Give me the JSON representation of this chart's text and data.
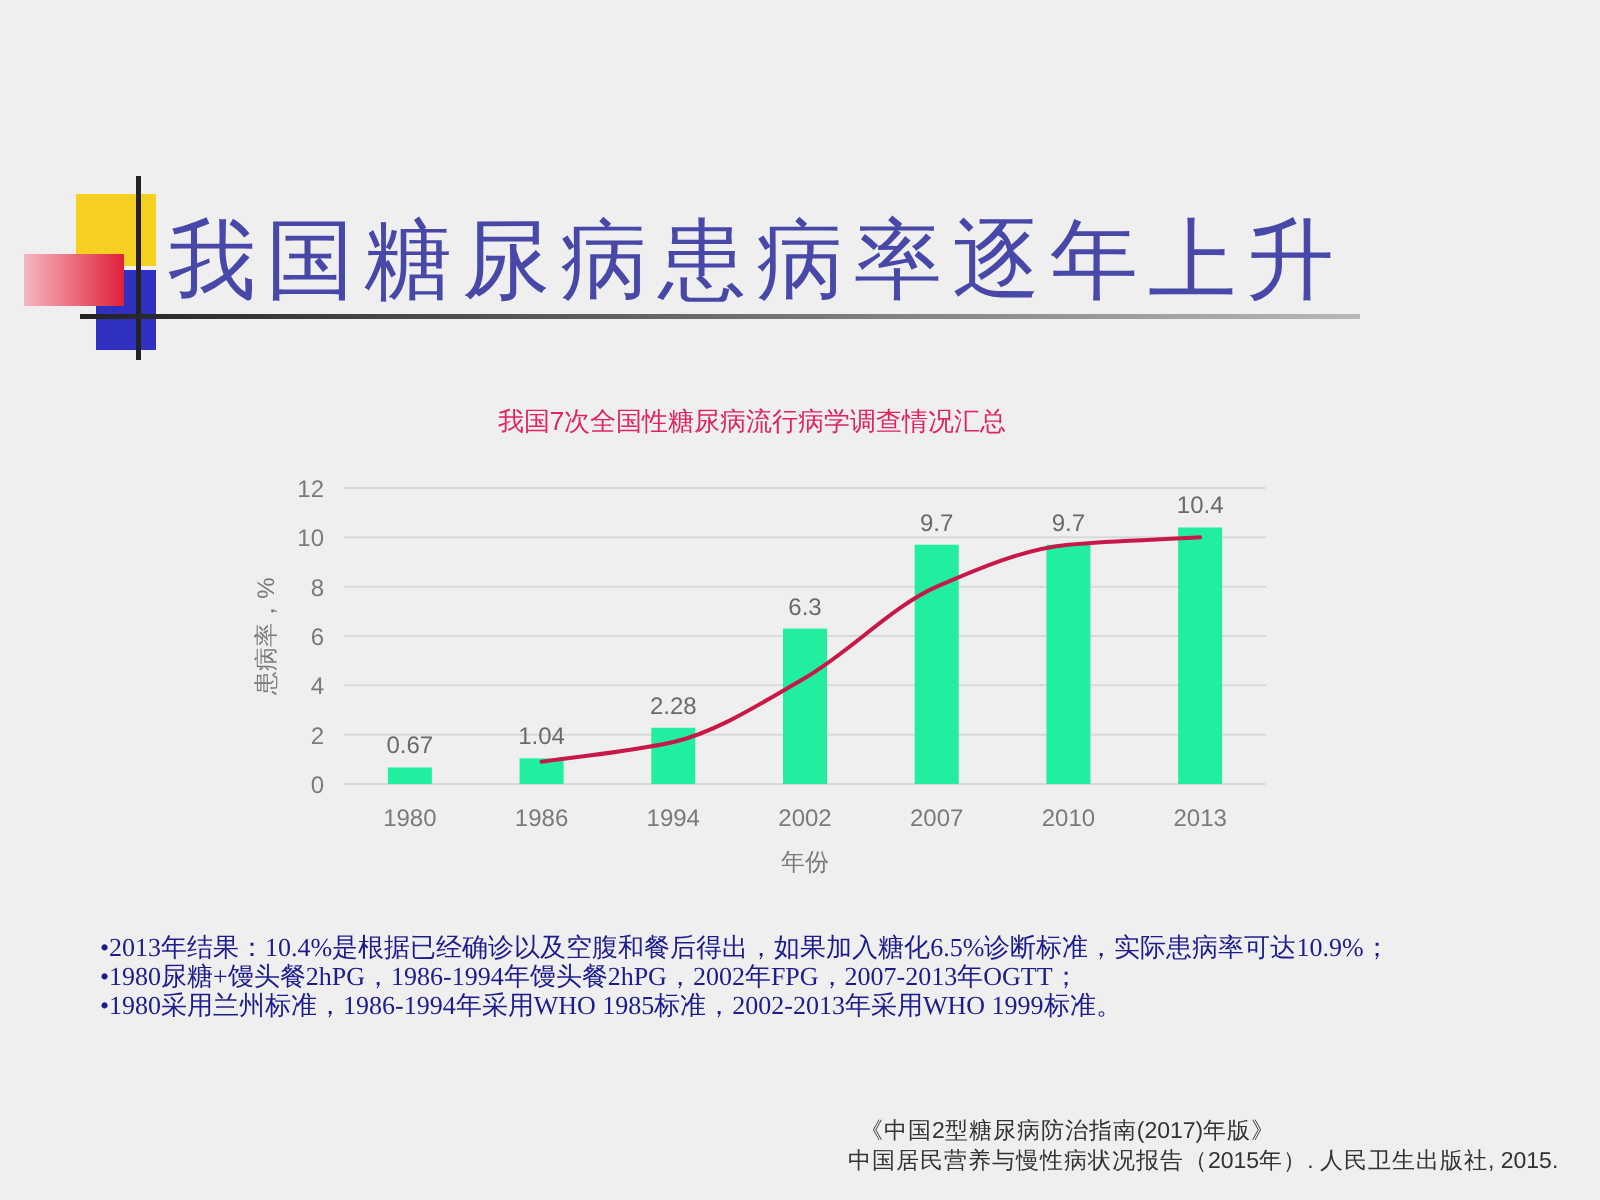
{
  "chart_data": {
    "type": "bar",
    "title": "我国糖尿病患病率逐年上升",
    "subtitle": "我国7次全国性糖尿病流行病学调查情况汇总",
    "xlabel": "年份",
    "ylabel": "患病率，%",
    "categories": [
      "1980",
      "1986",
      "1994",
      "2002",
      "2007",
      "2010",
      "2013"
    ],
    "series": [
      {
        "color": "#22eea0",
        "values": [
          0.67,
          1.04,
          2.28,
          6.3,
          9.7,
          9.7,
          10.4
        ],
        "value_labels": [
          "0.67",
          "1.04",
          "2.28",
          "6.3",
          "9.7",
          "9.7",
          "10.4"
        ]
      },
      {
        "type": "line",
        "color": "#c81848",
        "values": [
          null,
          0.9,
          1.7,
          4.3,
          8.0,
          9.7,
          10.0
        ]
      }
    ],
    "ylim": [
      0,
      12
    ],
    "yticks": [
      0,
      2,
      4,
      6,
      8,
      10,
      12
    ],
    "grid": "y",
    "annotations": [
      "•2013年结果：10.4%是根据已经确诊以及空腹和餐后得出，如果加入糖化6.5%诊断标准，实际患病率可达10.9%；",
      "•1980尿糖+馒头餐2hPG，1986-1994年馒头餐2hPG，2002年FPG，2007-2013年OGTT；",
      "•1980采用兰州标准，1986-1994年采用WHO 1985标准，2002-2013年采用WHO 1999标准。",
      "《中国2型糖尿病防治指南(2017)年版》",
      "中国居民营养与慢性病状况报告（2015年）. 人民卫生出版社, 2015."
    ]
  }
}
